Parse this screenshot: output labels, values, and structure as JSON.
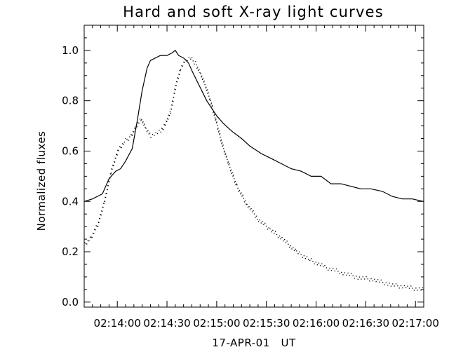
{
  "chart_data": {
    "type": "line",
    "title": "Hard and soft X-ray light curves",
    "xlabel": "17-APR-01   UT",
    "ylabel": "Normalized fluxes",
    "xlim": [
      "02:13:40",
      "02:17:05"
    ],
    "ylim": [
      -0.02,
      1.1
    ],
    "x_ticks": [
      "02:14:00",
      "02:14:30",
      "02:15:00",
      "02:15:30",
      "02:16:00",
      "02:16:30",
      "02:17:00"
    ],
    "y_ticks": [
      "0.0",
      "0.2",
      "0.4",
      "0.6",
      "0.8",
      "1.0"
    ],
    "grid": false,
    "legend": "none",
    "series": [
      {
        "style": "solid",
        "x": [
          "02:13:40",
          "02:13:45",
          "02:13:51",
          "02:13:55",
          "02:13:59",
          "02:14:02",
          "02:14:05",
          "02:14:09",
          "02:14:12",
          "02:14:15",
          "02:14:18",
          "02:14:20",
          "02:14:23",
          "02:14:26",
          "02:14:30",
          "02:14:33",
          "02:14:35",
          "02:14:37",
          "02:14:40",
          "02:14:43",
          "02:14:45",
          "02:14:48",
          "02:14:51",
          "02:14:54",
          "02:14:57",
          "02:15:00",
          "02:15:04",
          "02:15:09",
          "02:15:15",
          "02:15:20",
          "02:15:27",
          "02:15:33",
          "02:15:39",
          "02:15:45",
          "02:15:51",
          "02:15:57",
          "02:16:03",
          "02:16:09",
          "02:16:15",
          "02:16:21",
          "02:16:27",
          "02:16:33",
          "02:16:40",
          "02:16:46",
          "02:16:52",
          "02:16:58",
          "02:17:05"
        ],
        "y": [
          0.4,
          0.41,
          0.43,
          0.49,
          0.52,
          0.53,
          0.56,
          0.61,
          0.72,
          0.84,
          0.93,
          0.96,
          0.97,
          0.98,
          0.98,
          0.99,
          1.0,
          0.98,
          0.97,
          0.95,
          0.92,
          0.88,
          0.84,
          0.8,
          0.77,
          0.74,
          0.71,
          0.68,
          0.65,
          0.62,
          0.59,
          0.57,
          0.55,
          0.53,
          0.52,
          0.5,
          0.5,
          0.47,
          0.47,
          0.46,
          0.45,
          0.45,
          0.44,
          0.42,
          0.41,
          0.41,
          0.4
        ]
      },
      {
        "style": "dotted",
        "x": [
          "02:13:40",
          "02:13:44",
          "02:13:48",
          "02:13:52",
          "02:13:56",
          "02:14:00",
          "02:14:04",
          "02:14:08",
          "02:14:11",
          "02:14:14",
          "02:14:17",
          "02:14:20",
          "02:14:23",
          "02:14:26",
          "02:14:28",
          "02:14:30",
          "02:14:32",
          "02:14:35",
          "02:14:38",
          "02:14:41",
          "02:14:44",
          "02:14:47",
          "02:14:50",
          "02:14:53",
          "02:14:56",
          "02:14:59",
          "02:15:03",
          "02:15:07",
          "02:15:12",
          "02:15:18",
          "02:15:25",
          "02:15:32",
          "02:15:40",
          "02:15:48",
          "02:15:56",
          "02:16:05",
          "02:16:15",
          "02:16:25",
          "02:16:35",
          "02:16:45",
          "02:16:55",
          "02:17:05"
        ],
        "y": [
          0.23,
          0.26,
          0.31,
          0.4,
          0.52,
          0.6,
          0.64,
          0.66,
          0.7,
          0.73,
          0.69,
          0.66,
          0.67,
          0.68,
          0.7,
          0.73,
          0.76,
          0.86,
          0.93,
          0.96,
          0.97,
          0.95,
          0.91,
          0.86,
          0.8,
          0.73,
          0.63,
          0.55,
          0.46,
          0.39,
          0.33,
          0.29,
          0.25,
          0.2,
          0.17,
          0.14,
          0.12,
          0.1,
          0.09,
          0.07,
          0.06,
          0.05
        ]
      }
    ]
  }
}
